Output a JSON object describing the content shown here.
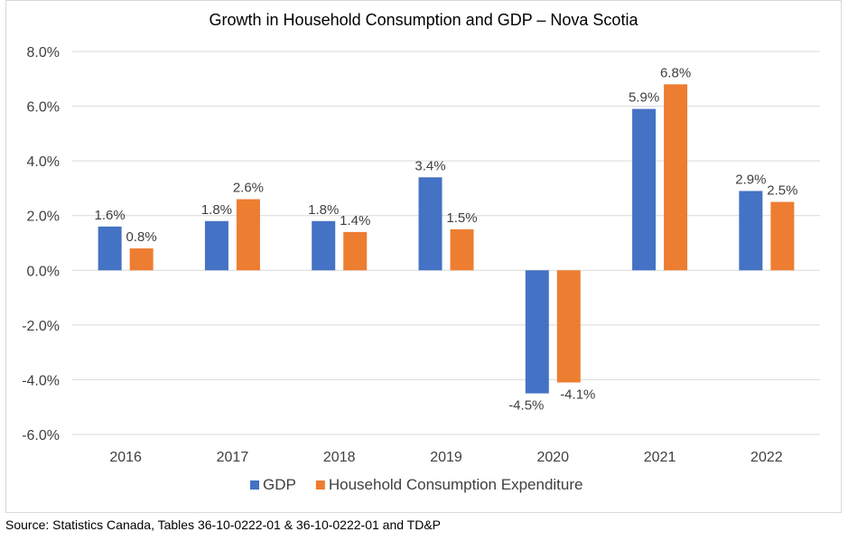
{
  "chart_data": {
    "type": "bar",
    "title": "Growth in Household Consumption and GDP – Nova Scotia",
    "categories": [
      "2016",
      "2017",
      "2018",
      "2019",
      "2020",
      "2021",
      "2022"
    ],
    "series": [
      {
        "name": "GDP",
        "color": "#4472c4",
        "values": [
          1.6,
          1.8,
          1.8,
          3.4,
          -4.5,
          5.9,
          2.9
        ],
        "labels": [
          "1.6%",
          "1.8%",
          "1.8%",
          "3.4%",
          "-4.5%",
          "5.9%",
          "2.9%"
        ]
      },
      {
        "name": "Household Consumption Expenditure",
        "color": "#ed7d31",
        "values": [
          0.8,
          2.6,
          1.4,
          1.5,
          -4.1,
          6.8,
          2.5
        ],
        "labels": [
          "0.8%",
          "2.6%",
          "1.4%",
          "1.5%",
          "-4.1%",
          "6.8%",
          "2.5%"
        ]
      }
    ],
    "ylim": [
      -6.0,
      8.0
    ],
    "yticks": [
      8.0,
      6.0,
      4.0,
      2.0,
      0.0,
      -2.0,
      -4.0,
      -6.0
    ],
    "ytick_labels": [
      "8.0%",
      "6.0%",
      "4.0%",
      "2.0%",
      "0.0%",
      "-2.0%",
      "-4.0%",
      "-6.0%"
    ],
    "xlabel": "",
    "ylabel": "",
    "grid": true,
    "legend_position": "bottom"
  },
  "source": "Source: Statistics Canada, Tables 36-10-0222-01 & 36-10-0222-01 and TD&P",
  "colors": {
    "gridline": "#d9d9d9",
    "text": "#404040"
  }
}
